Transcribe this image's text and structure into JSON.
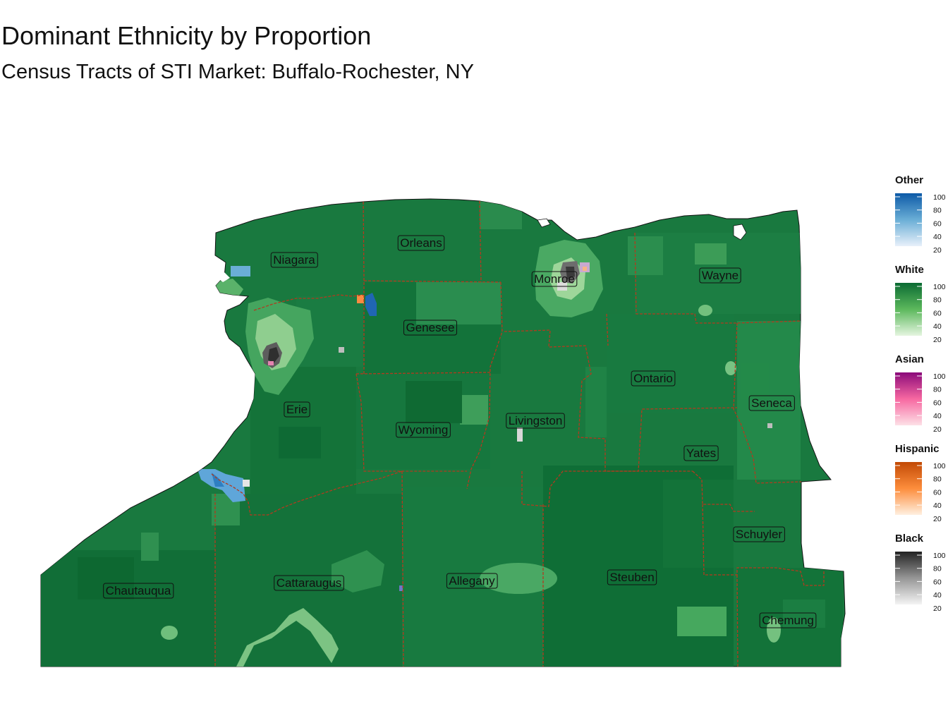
{
  "title": "Dominant Ethnicity by Proportion",
  "subtitle": "Census Tracts of STI Market: Buffalo-Rochester, NY",
  "counties": [
    {
      "id": "niagara",
      "label": "Niagara"
    },
    {
      "id": "orleans",
      "label": "Orleans"
    },
    {
      "id": "monroe",
      "label": "Monroe"
    },
    {
      "id": "wayne",
      "label": "Wayne"
    },
    {
      "id": "genesee",
      "label": "Genesee"
    },
    {
      "id": "ontario",
      "label": "Ontario"
    },
    {
      "id": "seneca",
      "label": "Seneca"
    },
    {
      "id": "erie",
      "label": "Erie"
    },
    {
      "id": "wyoming",
      "label": "Wyoming"
    },
    {
      "id": "livingston",
      "label": "Livingston"
    },
    {
      "id": "yates",
      "label": "Yates"
    },
    {
      "id": "schuyler",
      "label": "Schuyler"
    },
    {
      "id": "chautauqua",
      "label": "Chautauqua"
    },
    {
      "id": "cattaraugus",
      "label": "Cattaraugus"
    },
    {
      "id": "allegany",
      "label": "Allegany"
    },
    {
      "id": "steuben",
      "label": "Steuben"
    },
    {
      "id": "chemung",
      "label": "Chemung"
    }
  ],
  "legend": [
    {
      "id": "other",
      "title": "Other",
      "colors": [
        "#e8f0fa",
        "#6aaed6",
        "#0d5aa7"
      ],
      "ticks": [
        "100",
        "80",
        "60",
        "40",
        "20"
      ]
    },
    {
      "id": "white",
      "title": "White",
      "colors": [
        "#e5f5e0",
        "#5cb85c",
        "#0b6b33"
      ],
      "ticks": [
        "100",
        "80",
        "60",
        "40",
        "20"
      ]
    },
    {
      "id": "asian",
      "title": "Asian",
      "colors": [
        "#fde0e6",
        "#f768a1",
        "#8b0a7a"
      ],
      "ticks": [
        "100",
        "80",
        "60",
        "40",
        "20"
      ]
    },
    {
      "id": "hispanic",
      "title": "Hispanic",
      "colors": [
        "#fff0e0",
        "#fd8d3c",
        "#c24a05"
      ],
      "ticks": [
        "100",
        "80",
        "60",
        "40",
        "20"
      ]
    },
    {
      "id": "black",
      "title": "Black",
      "colors": [
        "#f4f4f4",
        "#969696",
        "#222222"
      ],
      "ticks": [
        "100",
        "80",
        "60",
        "40",
        "20"
      ]
    }
  ],
  "colors": {
    "tract_base": "#19793f",
    "tract_dark": "#0f6b35",
    "tract_light": "#3d9d57",
    "county_border": "#b33a1e"
  }
}
